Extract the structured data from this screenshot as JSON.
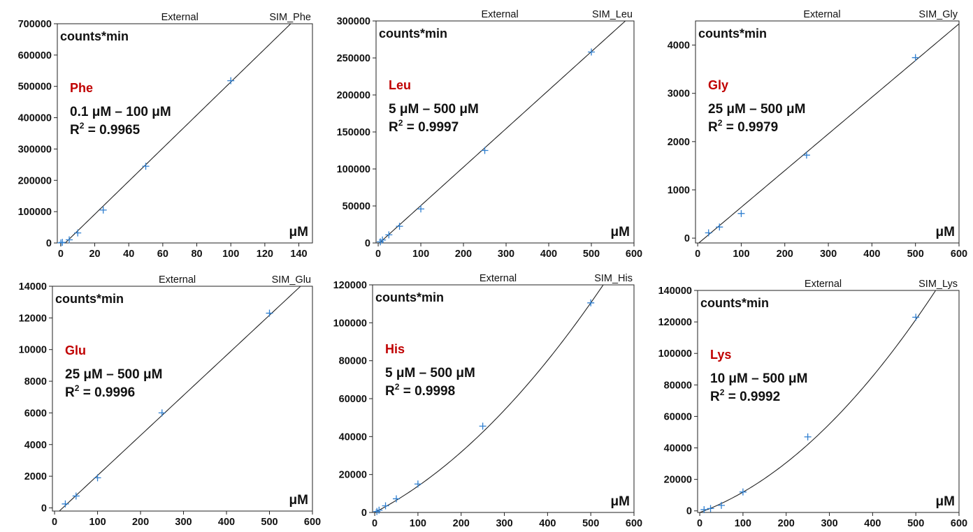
{
  "colors": {
    "amino_acid_label": "#c00000",
    "data_point": "#2f7fd0",
    "axis": "#222222",
    "text": "#111111"
  },
  "chart_data": [
    {
      "type": "scatter",
      "amino_acid": "Phe",
      "header_left": "External",
      "header_right": "SIM_Phe",
      "ylabel": "counts*min",
      "xlabel": "μM",
      "range_text": "0.1 μM – 100 μM",
      "r2_prefix": "R",
      "r2_sup": "2",
      "r2_value": " = 0.9965",
      "xlim": [
        -2,
        148
      ],
      "ylim": [
        0,
        700000
      ],
      "xticks": [
        0,
        20,
        40,
        60,
        80,
        100,
        120,
        140
      ],
      "yticks": [
        0,
        100000,
        200000,
        300000,
        400000,
        500000,
        600000,
        700000
      ],
      "points": [
        [
          0.1,
          300
        ],
        [
          1,
          2000
        ],
        [
          5,
          10000
        ],
        [
          10,
          32000
        ],
        [
          25,
          105000
        ],
        [
          50,
          245000
        ],
        [
          100,
          518000
        ]
      ],
      "fit": {
        "kind": "linear",
        "a": 5280,
        "b": -14000,
        "c": 0
      }
    },
    {
      "type": "scatter",
      "amino_acid": "Leu",
      "header_left": "External",
      "header_right": "SIM_Leu",
      "ylabel": "counts*min",
      "xlabel": "μM",
      "range_text": "5 μM – 500 μM",
      "r2_prefix": "R",
      "r2_sup": "2",
      "r2_value": " = 0.9997",
      "xlim": [
        -5,
        600
      ],
      "ylim": [
        0,
        300000
      ],
      "xticks": [
        0,
        100,
        200,
        300,
        400,
        500,
        600
      ],
      "yticks": [
        0,
        50000,
        100000,
        150000,
        200000,
        250000,
        300000
      ],
      "points": [
        [
          5,
          1500
        ],
        [
          10,
          4000
        ],
        [
          25,
          11000
        ],
        [
          50,
          22500
        ],
        [
          100,
          46000
        ],
        [
          250,
          125000
        ],
        [
          500,
          258000
        ]
      ],
      "fit": {
        "kind": "linear",
        "a": 520,
        "b": -1500,
        "c": 0
      }
    },
    {
      "type": "scatter",
      "amino_acid": "Gly",
      "header_left": "External",
      "header_right": "SIM_Gly",
      "ylabel": "counts*min",
      "xlabel": "μM",
      "range_text": "25 μM – 500 μM",
      "r2_prefix": "R",
      "r2_sup": "2",
      "r2_value": " = 0.9979",
      "xlim": [
        -5,
        600
      ],
      "ylim": [
        -100,
        4500
      ],
      "xticks": [
        0,
        100,
        200,
        300,
        400,
        500,
        600
      ],
      "yticks": [
        0,
        1000,
        2000,
        3000,
        4000
      ],
      "points": [
        [
          25,
          110
        ],
        [
          50,
          230
        ],
        [
          100,
          510
        ],
        [
          250,
          1720
        ],
        [
          500,
          3740
        ]
      ],
      "fit": {
        "kind": "linear",
        "a": 7.6,
        "b": -120,
        "c": 0
      }
    },
    {
      "type": "scatter",
      "amino_acid": "Glu",
      "header_left": "External",
      "header_right": "SIM_Glu",
      "ylabel": "counts*min",
      "xlabel": "μM",
      "range_text": "25 μM – 500 μM",
      "r2_prefix": "R",
      "r2_sup": "2",
      "r2_value": " = 0.9996",
      "xlim": [
        -5,
        600
      ],
      "ylim": [
        -200,
        14000
      ],
      "xticks": [
        0,
        100,
        200,
        300,
        400,
        500,
        600
      ],
      "yticks": [
        0,
        2000,
        4000,
        6000,
        8000,
        10000,
        12000,
        14000
      ],
      "points": [
        [
          25,
          250
        ],
        [
          50,
          750
        ],
        [
          100,
          1900
        ],
        [
          250,
          6000
        ],
        [
          500,
          12300
        ]
      ],
      "fit": {
        "kind": "linear",
        "a": 25.3,
        "b": -480,
        "c": 0
      }
    },
    {
      "type": "scatter",
      "amino_acid": "His",
      "header_left": "External",
      "header_right": "SIM_His",
      "ylabel": "counts*min",
      "xlabel": "μM",
      "range_text": "5 μM – 500 μM",
      "r2_prefix": "R",
      "r2_sup": "2",
      "r2_value": " = 0.9998",
      "xlim": [
        -5,
        600
      ],
      "ylim": [
        0,
        120000
      ],
      "xticks": [
        0,
        100,
        200,
        300,
        400,
        500,
        600
      ],
      "yticks": [
        0,
        20000,
        40000,
        60000,
        80000,
        100000,
        120000
      ],
      "points": [
        [
          5,
          500
        ],
        [
          10,
          1200
        ],
        [
          25,
          3500
        ],
        [
          50,
          7200
        ],
        [
          100,
          15000
        ],
        [
          250,
          45500
        ],
        [
          500,
          110500
        ]
      ],
      "fit": {
        "kind": "quadratic",
        "a": 118,
        "b": 0,
        "c": 0.206
      }
    },
    {
      "type": "scatter",
      "amino_acid": "Lys",
      "header_left": "External",
      "header_right": "SIM_Lys",
      "ylabel": "counts*min",
      "xlabel": "μM",
      "range_text": "10 μM – 500 μM",
      "r2_prefix": "R",
      "r2_sup": "2",
      "r2_value": " = 0.9992",
      "xlim": [
        -5,
        600
      ],
      "ylim": [
        -1000,
        140000
      ],
      "xticks": [
        0,
        100,
        200,
        300,
        400,
        500,
        600
      ],
      "yticks": [
        0,
        20000,
        40000,
        60000,
        80000,
        100000,
        120000,
        140000
      ],
      "points": [
        [
          10,
          800
        ],
        [
          25,
          1500
        ],
        [
          50,
          3500
        ],
        [
          100,
          12000
        ],
        [
          250,
          47000
        ],
        [
          500,
          123000
        ]
      ],
      "fit": {
        "kind": "quadratic",
        "a": 100,
        "b": -1000,
        "c": 0.29
      }
    }
  ]
}
